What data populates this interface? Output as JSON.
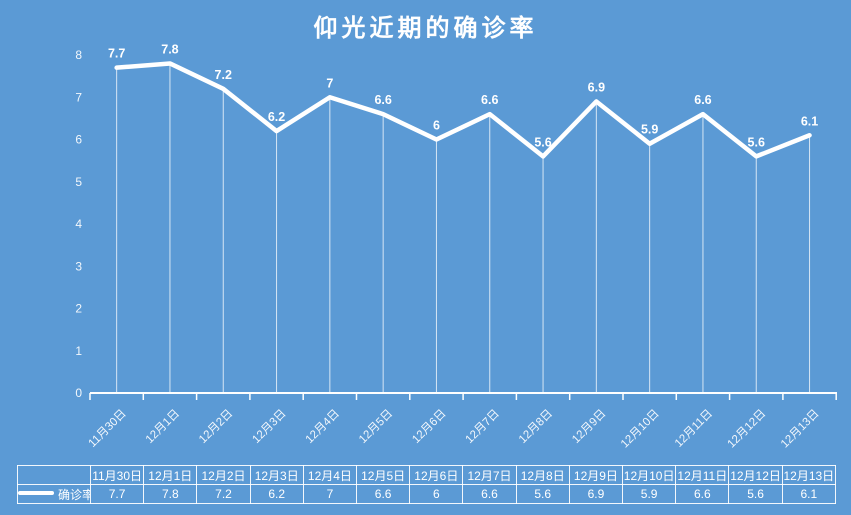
{
  "title": "仰光近期的确诊率",
  "colors": {
    "background": "#5B9AD5",
    "line": "#FFFFFF",
    "axis": "#FFFFFF",
    "drop_line": "rgba(255,255,255,0.75)",
    "text": "#FFFFFF"
  },
  "chart_data": {
    "type": "line",
    "title": "仰光近期的确诊率",
    "categories": [
      "11月30日",
      "12月1日",
      "12月2日",
      "12月3日",
      "12月4日",
      "12月5日",
      "12月6日",
      "12月7日",
      "12月8日",
      "12月9日",
      "12月10日",
      "12月11日",
      "12月12日",
      "12月13日"
    ],
    "series": [
      {
        "name": "确诊率",
        "values": [
          7.7,
          7.8,
          7.2,
          6.2,
          7,
          6.6,
          6,
          6.6,
          5.6,
          6.9,
          5.9,
          6.6,
          5.6,
          6.1
        ]
      }
    ],
    "xlabel": "",
    "ylabel": "",
    "ylim": [
      0,
      8
    ],
    "yticks": [
      0,
      1,
      2,
      3,
      4,
      5,
      6,
      7,
      8
    ],
    "grid": false,
    "data_labels": true,
    "legend_position": "bottom-table"
  },
  "table": {
    "legend_label": "确诊率",
    "headers": [
      "11月30日",
      "12月1日",
      "12月2日",
      "12月3日",
      "12月4日",
      "12月5日",
      "12月6日",
      "12月7日",
      "12月8日",
      "12月9日",
      "12月10日",
      "12月11日",
      "12月12日",
      "12月13日"
    ],
    "values": [
      "7.7",
      "7.8",
      "7.2",
      "6.2",
      "7",
      "6.6",
      "6",
      "6.6",
      "5.6",
      "6.9",
      "5.9",
      "6.6",
      "5.6",
      "6.1"
    ]
  }
}
